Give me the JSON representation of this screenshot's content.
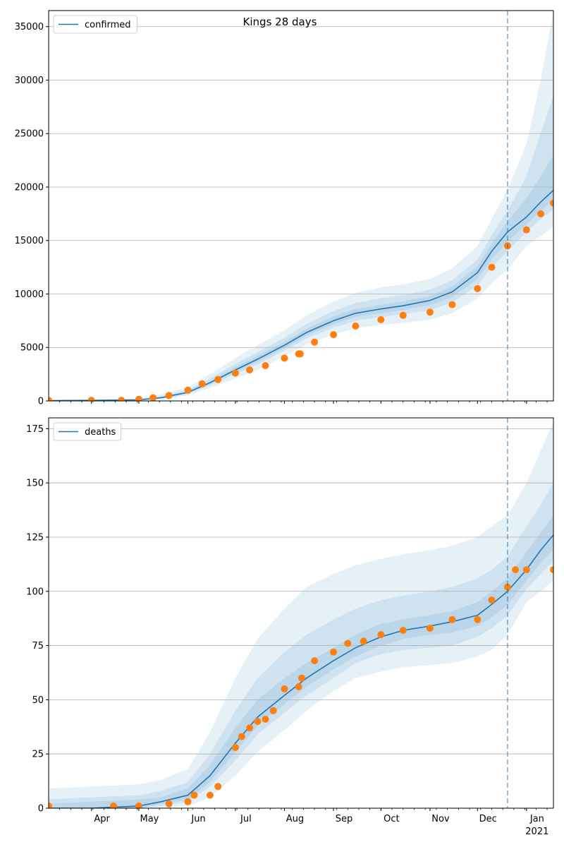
{
  "figure": {
    "title": "Kings 28 days",
    "colors": {
      "model": "#1f77b4",
      "observed": "#ff7f0e",
      "band": "#1f77b4",
      "forecast_line": "#1f77b4",
      "grid": "#b0b0b0"
    }
  },
  "chart_data": [
    {
      "type": "line",
      "title": "Kings 28 days",
      "series_label": "confirmed",
      "legend_position": "top-left",
      "grid": true,
      "ylim": [
        0,
        36500
      ],
      "yticks": [
        0,
        5000,
        10000,
        15000,
        20000,
        25000,
        30000,
        35000
      ],
      "xlim": [
        "2020-03-05",
        "2021-01-18"
      ],
      "forecast_start": "2020-12-20",
      "x_major_ticks": [
        {
          "date": "2020-04-01",
          "label": "Apr"
        },
        {
          "date": "2020-05-01",
          "label": "May"
        },
        {
          "date": "2020-06-01",
          "label": "Jun"
        },
        {
          "date": "2020-07-01",
          "label": "Jul"
        },
        {
          "date": "2020-08-01",
          "label": "Aug"
        },
        {
          "date": "2020-09-01",
          "label": "Sep"
        },
        {
          "date": "2020-10-01",
          "label": "Oct"
        },
        {
          "date": "2020-11-01",
          "label": "Nov"
        },
        {
          "date": "2020-12-01",
          "label": "Dec"
        },
        {
          "date": "2021-01-01",
          "label": "Jan",
          "sublabel": "2021"
        }
      ],
      "model": {
        "dates": [
          "2020-03-05",
          "2020-04-01",
          "2020-05-01",
          "2020-05-15",
          "2020-06-01",
          "2020-06-15",
          "2020-07-01",
          "2020-07-15",
          "2020-08-01",
          "2020-08-15",
          "2020-09-01",
          "2020-09-15",
          "2020-10-01",
          "2020-10-15",
          "2020-11-01",
          "2020-11-15",
          "2020-12-01",
          "2020-12-10",
          "2020-12-20",
          "2021-01-01",
          "2021-01-10",
          "2021-01-18"
        ],
        "median": [
          30,
          50,
          100,
          300,
          800,
          1700,
          2900,
          3900,
          5200,
          6400,
          7500,
          8200,
          8600,
          8900,
          9400,
          10200,
          12000,
          14000,
          15800,
          17200,
          18600,
          19700
        ],
        "band_outer_lo": [
          0,
          0,
          0,
          100,
          500,
          1200,
          2100,
          2900,
          4200,
          5300,
          6200,
          6800,
          7100,
          7300,
          7600,
          8200,
          9600,
          11000,
          12300,
          14500,
          15400,
          16300
        ],
        "band_outer_hi": [
          80,
          120,
          250,
          600,
          1300,
          2500,
          4000,
          5200,
          6600,
          8000,
          9300,
          10100,
          10600,
          10900,
          11400,
          12400,
          14500,
          17000,
          19800,
          24000,
          30000,
          36500
        ],
        "band_mid_lo": [
          10,
          20,
          50,
          200,
          650,
          1450,
          2500,
          3400,
          4700,
          5850,
          6850,
          7500,
          7850,
          8100,
          8500,
          9200,
          10800,
          12500,
          14000,
          15800,
          17000,
          17900
        ],
        "band_mid_hi": [
          50,
          80,
          170,
          450,
          1050,
          2100,
          3450,
          4550,
          5900,
          7200,
          8400,
          9150,
          9600,
          9900,
          10400,
          11300,
          13200,
          15500,
          17800,
          21000,
          25000,
          28500
        ],
        "band_inner_lo": [
          20,
          35,
          75,
          250,
          720,
          1580,
          2700,
          3650,
          4950,
          6120,
          7170,
          7850,
          8220,
          8500,
          8950,
          9700,
          11400,
          13250,
          14900,
          16500,
          17800,
          18800
        ],
        "band_inner_hi": [
          40,
          65,
          130,
          380,
          900,
          1850,
          3150,
          4200,
          5500,
          6750,
          7900,
          8600,
          9000,
          9300,
          9800,
          10700,
          12600,
          14700,
          16800,
          19000,
          21000,
          23000
        ]
      },
      "observed": {
        "dates": [
          "2020-03-05",
          "2020-04-01",
          "2020-04-20",
          "2020-05-01",
          "2020-05-10",
          "2020-05-20",
          "2020-06-01",
          "2020-06-10",
          "2020-06-20",
          "2020-07-01",
          "2020-07-10",
          "2020-07-20",
          "2020-08-01",
          "2020-08-10",
          "2020-08-11",
          "2020-08-20",
          "2020-09-01",
          "2020-09-15",
          "2020-10-01",
          "2020-10-15",
          "2020-11-01",
          "2020-11-15",
          "2020-12-01",
          "2020-12-10",
          "2020-12-20",
          "2021-01-01",
          "2021-01-10",
          "2021-01-18"
        ],
        "values": [
          50,
          50,
          60,
          150,
          300,
          500,
          1000,
          1600,
          2000,
          2600,
          2900,
          3300,
          4000,
          4400,
          4400,
          5500,
          6200,
          7000,
          7600,
          8000,
          8300,
          9000,
          10500,
          12500,
          14500,
          16000,
          17500,
          18500
        ]
      }
    },
    {
      "type": "line",
      "title": "",
      "series_label": "deaths",
      "legend_position": "top-left",
      "grid": true,
      "ylim": [
        0,
        180
      ],
      "yticks": [
        0,
        25,
        50,
        75,
        100,
        125,
        150,
        175
      ],
      "xlim": [
        "2020-03-05",
        "2021-01-18"
      ],
      "forecast_start": "2020-12-20",
      "x_major_ticks": [
        {
          "date": "2020-04-01",
          "label": "Apr"
        },
        {
          "date": "2020-05-01",
          "label": "May"
        },
        {
          "date": "2020-06-01",
          "label": "Jun"
        },
        {
          "date": "2020-07-01",
          "label": "Jul"
        },
        {
          "date": "2020-08-01",
          "label": "Aug"
        },
        {
          "date": "2020-09-01",
          "label": "Sep"
        },
        {
          "date": "2020-10-01",
          "label": "Oct"
        },
        {
          "date": "2020-11-01",
          "label": "Nov"
        },
        {
          "date": "2020-12-01",
          "label": "Dec"
        },
        {
          "date": "2021-01-01",
          "label": "Jan",
          "sublabel": "2021"
        }
      ],
      "model": {
        "dates": [
          "2020-03-05",
          "2020-04-01",
          "2020-05-01",
          "2020-05-15",
          "2020-06-01",
          "2020-06-15",
          "2020-07-01",
          "2020-07-15",
          "2020-08-01",
          "2020-08-15",
          "2020-09-01",
          "2020-09-15",
          "2020-10-01",
          "2020-10-15",
          "2020-11-01",
          "2020-11-15",
          "2020-12-01",
          "2020-12-10",
          "2020-12-20",
          "2021-01-01",
          "2021-01-10",
          "2021-01-18"
        ],
        "median": [
          0,
          0,
          1,
          3,
          6,
          15,
          30,
          42,
          52,
          60,
          68,
          74,
          79,
          82,
          84,
          86,
          89,
          94,
          100,
          110,
          119,
          126
        ],
        "band_outer_lo": [
          0,
          0,
          0,
          0,
          1,
          5,
          15,
          26,
          36,
          45,
          54,
          60,
          63,
          65,
          66,
          67,
          70,
          73,
          80,
          95,
          100,
          105
        ],
        "band_outer_hi": [
          9,
          10,
          11,
          13,
          18,
          35,
          60,
          78,
          92,
          102,
          108,
          112,
          115,
          117,
          119,
          121,
          125,
          130,
          135,
          150,
          165,
          178
        ],
        "band_mid_lo": [
          0,
          0,
          0,
          1,
          3,
          10,
          22,
          34,
          44,
          52,
          60,
          67,
          71,
          73,
          74,
          75,
          79,
          83,
          89,
          101,
          108,
          114
        ],
        "band_mid_hi": [
          4,
          5,
          6,
          8,
          12,
          25,
          45,
          60,
          72,
          80,
          87,
          92,
          96,
          98,
          100,
          102,
          106,
          110,
          116,
          130,
          140,
          150
        ],
        "band_inner_lo": [
          0,
          0,
          0,
          2,
          4,
          12,
          26,
          38,
          48,
          56,
          64,
          70,
          75,
          78,
          80,
          81,
          84,
          88,
          94,
          105,
          113,
          119
        ],
        "band_inner_hi": [
          2,
          3,
          4,
          5,
          9,
          20,
          37,
          50,
          60,
          67,
          74,
          80,
          85,
          87,
          89,
          91,
          95,
          100,
          106,
          118,
          127,
          135
        ]
      },
      "observed": {
        "dates": [
          "2020-03-05",
          "2020-04-15",
          "2020-05-01",
          "2020-05-20",
          "2020-06-01",
          "2020-06-05",
          "2020-06-15",
          "2020-06-20",
          "2020-07-01",
          "2020-07-05",
          "2020-07-10",
          "2020-07-15",
          "2020-07-20",
          "2020-07-25",
          "2020-08-01",
          "2020-08-10",
          "2020-08-12",
          "2020-08-20",
          "2020-09-01",
          "2020-09-10",
          "2020-09-20",
          "2020-10-01",
          "2020-10-15",
          "2020-11-01",
          "2020-11-15",
          "2020-12-01",
          "2020-12-10",
          "2020-12-20",
          "2020-12-25",
          "2021-01-01",
          "2021-01-18"
        ],
        "values": [
          1,
          1,
          1,
          2,
          3,
          6,
          6,
          10,
          28,
          33,
          37,
          40,
          41,
          45,
          55,
          56,
          60,
          68,
          72,
          76,
          77,
          80,
          82,
          83,
          87,
          87,
          96,
          102,
          110,
          110,
          110
        ]
      }
    }
  ]
}
